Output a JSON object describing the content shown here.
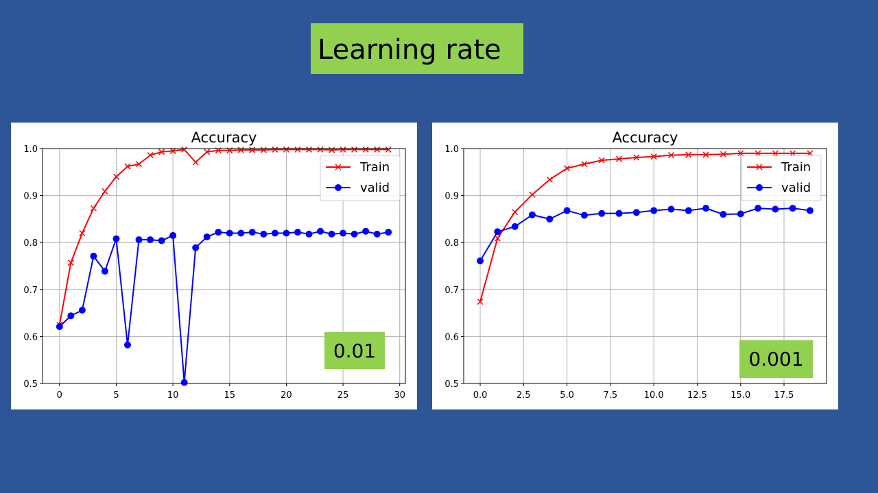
{
  "slide": {
    "title": "Learning rate"
  },
  "chart_data": [
    {
      "type": "line",
      "title": "Accuracy",
      "xlabel": "",
      "ylabel": "",
      "annotation": "0.01",
      "xlim": [
        -1.5,
        30.5
      ],
      "ylim": [
        0.5,
        1.0
      ],
      "xticks": [
        0,
        5,
        10,
        15,
        20,
        25,
        30
      ],
      "xtick_labels": [
        "0",
        "5",
        "10",
        "15",
        "20",
        "25",
        "30"
      ],
      "yticks": [
        0.5,
        0.6,
        0.7,
        0.8,
        0.9,
        1.0
      ],
      "ytick_labels": [
        "0.5",
        "0.6",
        "0.7",
        "0.8",
        "0.9",
        "1.0"
      ],
      "grid": true,
      "legend": "top-right",
      "x": [
        0,
        1,
        2,
        3,
        4,
        5,
        6,
        7,
        8,
        9,
        10,
        11,
        12,
        13,
        14,
        15,
        16,
        17,
        18,
        19,
        20,
        21,
        22,
        23,
        24,
        25,
        26,
        27,
        28,
        29
      ],
      "series": [
        {
          "name": "Train",
          "color": "#ff0000",
          "marker": "x",
          "values": [
            0.625,
            0.757,
            0.82,
            0.873,
            0.909,
            0.94,
            0.962,
            0.967,
            0.986,
            0.993,
            0.995,
            0.998,
            0.971,
            0.993,
            0.996,
            0.996,
            0.997,
            0.997,
            0.997,
            0.998,
            0.998,
            0.998,
            0.998,
            0.998,
            0.997,
            0.998,
            0.998,
            0.998,
            0.998,
            0.998
          ]
        },
        {
          "name": "valid",
          "color": "#0000ff",
          "marker": "o",
          "values": [
            0.621,
            0.644,
            0.656,
            0.771,
            0.739,
            0.808,
            0.582,
            0.806,
            0.806,
            0.804,
            0.815,
            0.502,
            0.789,
            0.812,
            0.822,
            0.82,
            0.82,
            0.822,
            0.818,
            0.82,
            0.82,
            0.822,
            0.818,
            0.824,
            0.818,
            0.82,
            0.818,
            0.824,
            0.818,
            0.822
          ]
        }
      ]
    },
    {
      "type": "line",
      "title": "Accuracy",
      "xlabel": "",
      "ylabel": "",
      "annotation": "0.001",
      "xlim": [
        -0.95,
        19.95
      ],
      "ylim": [
        0.5,
        1.0
      ],
      "xticks": [
        0,
        2.5,
        5,
        7.5,
        10,
        12.5,
        15,
        17.5
      ],
      "xtick_labels": [
        "0.0",
        "2.5",
        "5.0",
        "7.5",
        "10.0",
        "12.5",
        "15.0",
        "17.5"
      ],
      "yticks": [
        0.5,
        0.6,
        0.7,
        0.8,
        0.9,
        1.0
      ],
      "ytick_labels": [
        "0.5",
        "0.6",
        "0.7",
        "0.8",
        "0.9",
        "1.0"
      ],
      "grid": true,
      "legend": "top-right",
      "x": [
        0,
        1,
        2,
        3,
        4,
        5,
        6,
        7,
        8,
        9,
        10,
        11,
        12,
        13,
        14,
        15,
        16,
        17,
        18,
        19
      ],
      "series": [
        {
          "name": "Train",
          "color": "#ff0000",
          "marker": "x",
          "values": [
            0.674,
            0.809,
            0.865,
            0.902,
            0.934,
            0.958,
            0.967,
            0.975,
            0.978,
            0.981,
            0.983,
            0.986,
            0.987,
            0.987,
            0.988,
            0.99,
            0.99,
            0.99,
            0.99,
            0.99
          ]
        },
        {
          "name": "valid",
          "color": "#0000ff",
          "marker": "o",
          "values": [
            0.761,
            0.823,
            0.834,
            0.859,
            0.85,
            0.868,
            0.858,
            0.862,
            0.862,
            0.864,
            0.868,
            0.871,
            0.868,
            0.873,
            0.86,
            0.861,
            0.873,
            0.871,
            0.873,
            0.868
          ]
        }
      ]
    }
  ]
}
